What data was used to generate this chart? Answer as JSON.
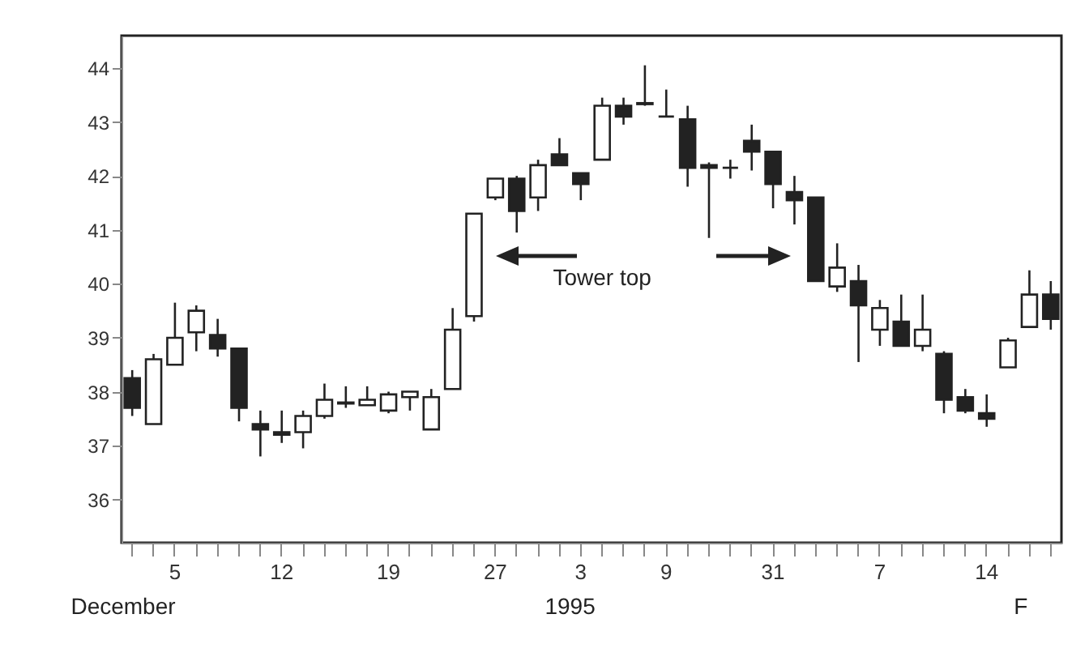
{
  "chart_data": {
    "type": "candlestick",
    "categories": [
      null,
      null,
      "5",
      null,
      null,
      null,
      null,
      "12",
      null,
      null,
      null,
      null,
      "19",
      null,
      null,
      null,
      null,
      "27",
      null,
      null,
      null,
      "3",
      null,
      null,
      null,
      "9",
      null,
      null,
      null,
      null,
      "31",
      null,
      null,
      null,
      null,
      "7",
      null,
      null,
      null,
      null,
      "14",
      null,
      null,
      null
    ],
    "ohlc": [
      [
        38.25,
        38.4,
        37.55,
        37.7
      ],
      [
        37.4,
        38.7,
        37.4,
        38.6
      ],
      [
        38.5,
        39.65,
        38.5,
        39.0
      ],
      [
        39.1,
        39.6,
        38.75,
        39.5
      ],
      [
        39.05,
        39.35,
        38.65,
        38.8
      ],
      [
        38.8,
        38.8,
        37.45,
        37.7
      ],
      [
        37.4,
        37.65,
        36.8,
        37.3
      ],
      [
        37.25,
        37.65,
        37.05,
        37.2
      ],
      [
        37.25,
        37.65,
        36.95,
        37.55
      ],
      [
        37.55,
        38.15,
        37.5,
        37.85
      ],
      [
        37.78,
        38.1,
        37.7,
        37.8
      ],
      [
        37.75,
        38.1,
        37.75,
        37.85
      ],
      [
        37.65,
        38.0,
        37.6,
        37.95
      ],
      [
        37.9,
        38.0,
        37.65,
        38.0
      ],
      [
        37.3,
        38.05,
        37.3,
        37.9
      ],
      [
        38.05,
        39.55,
        38.05,
        39.15
      ],
      [
        39.4,
        41.3,
        39.3,
        41.3
      ],
      [
        41.6,
        41.95,
        41.55,
        41.95
      ],
      [
        41.95,
        42.0,
        40.95,
        41.35
      ],
      [
        41.6,
        42.3,
        41.35,
        42.2
      ],
      [
        42.4,
        42.7,
        42.2,
        42.2
      ],
      [
        42.05,
        42.05,
        41.55,
        41.85
      ],
      [
        42.3,
        43.45,
        42.3,
        43.3
      ],
      [
        43.3,
        43.45,
        42.95,
        43.1
      ],
      [
        43.33,
        44.05,
        43.3,
        43.35
      ],
      [
        43.1,
        43.6,
        43.1,
        43.1
      ],
      [
        43.05,
        43.3,
        41.8,
        42.15
      ],
      [
        42.2,
        42.25,
        40.85,
        42.15
      ],
      [
        42.15,
        42.3,
        41.95,
        42.15
      ],
      [
        42.65,
        42.95,
        42.1,
        42.45
      ],
      [
        42.45,
        42.45,
        41.4,
        41.85
      ],
      [
        41.7,
        42.0,
        41.1,
        41.55
      ],
      [
        41.6,
        41.6,
        40.05,
        40.05
      ],
      [
        39.95,
        40.75,
        39.85,
        40.3
      ],
      [
        40.05,
        40.35,
        38.55,
        39.6
      ],
      [
        39.15,
        39.7,
        38.85,
        39.55
      ],
      [
        39.3,
        39.8,
        38.85,
        38.85
      ],
      [
        38.85,
        39.8,
        38.75,
        39.15
      ],
      [
        38.7,
        38.75,
        37.6,
        37.85
      ],
      [
        37.9,
        38.05,
        37.6,
        37.65
      ],
      [
        37.6,
        37.95,
        37.35,
        37.5
      ],
      [
        38.45,
        39.0,
        38.45,
        38.95
      ],
      [
        39.2,
        40.25,
        39.2,
        39.8
      ],
      [
        39.8,
        40.05,
        39.15,
        39.35
      ]
    ],
    "ylim": [
      35.2,
      44.6
    ],
    "yticks": [
      36,
      37,
      38,
      39,
      40,
      41,
      42,
      43,
      44
    ],
    "annotations": [
      "Tower top",
      "December",
      "1995",
      "F"
    ]
  }
}
